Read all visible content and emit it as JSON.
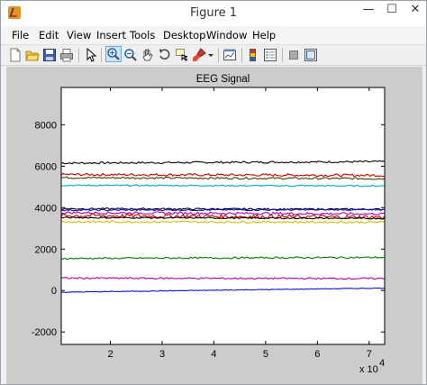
{
  "window": {
    "title": "Figure 1",
    "minimize_glyph": "—",
    "maximize_glyph": "☐",
    "close_glyph": "✕"
  },
  "menu": [
    {
      "label": "File"
    },
    {
      "label": "Edit"
    },
    {
      "label": "View"
    },
    {
      "label": "Insert"
    },
    {
      "label": "Tools"
    },
    {
      "label": "Desktop"
    },
    {
      "label": "Window"
    },
    {
      "label": "Help"
    }
  ],
  "toolbar": {
    "icons": [
      "new-figure-icon",
      "open-file-icon",
      "save-icon",
      "print-icon",
      "edit-plot-arrow-icon",
      "zoom-in-icon",
      "zoom-out-icon",
      "pan-hand-icon",
      "rotate-3d-icon",
      "data-cursor-icon",
      "brush-icon",
      "link-plot-icon",
      "colorbar-icon",
      "legend-icon",
      "hide-plot-tools-icon",
      "show-plot-tools-icon"
    ],
    "active": "zoom-in-icon"
  },
  "chart_data": {
    "type": "line",
    "title": "EEG Signal",
    "xlabel": "",
    "ylabel": "",
    "x_multiplier": "x 10",
    "x_multiplier_exp": "4",
    "xlim": [
      1.05,
      7.3
    ],
    "ylim": [
      -2600,
      9800
    ],
    "xticks": [
      2,
      3,
      4,
      5,
      6,
      7
    ],
    "yticks": [
      -2000,
      0,
      2000,
      4000,
      6000,
      8000
    ],
    "grid": false,
    "series": [
      {
        "color": "#000000",
        "values_start_end": [
          6150,
          6220
        ],
        "noise": 12
      },
      {
        "color": "#cc0000",
        "values_start_end": [
          5600,
          5560
        ],
        "noise": 15
      },
      {
        "color": "#4a3f00",
        "values_start_end": [
          5450,
          5400
        ],
        "noise": 12
      },
      {
        "color": "#00a6c7",
        "values_start_end": [
          5080,
          5050
        ],
        "noise": 8
      },
      {
        "color": "#000000",
        "values_start_end": [
          3950,
          3920
        ],
        "noise": 10
      },
      {
        "color": "#1010d0",
        "values_start_end": [
          3880,
          3900
        ],
        "noise": 8
      },
      {
        "color": "#b000b0",
        "values_start_end": [
          3760,
          3700
        ],
        "noise": 15
      },
      {
        "color": "#cc0000",
        "values_start_end": [
          3620,
          3540
        ],
        "noise": 25
      },
      {
        "color": "#000000",
        "values_start_end": [
          3520,
          3480
        ],
        "noise": 8
      },
      {
        "color": "#d4c300",
        "values_start_end": [
          3320,
          3300
        ],
        "noise": 12
      },
      {
        "color": "#008000",
        "values_start_end": [
          1550,
          1600
        ],
        "noise": 10
      },
      {
        "color": "#b000b0",
        "values_start_end": [
          600,
          580
        ],
        "noise": 10
      },
      {
        "color": "#1010d0",
        "values_start_end": [
          -80,
          120
        ],
        "noise": 4
      }
    ]
  }
}
